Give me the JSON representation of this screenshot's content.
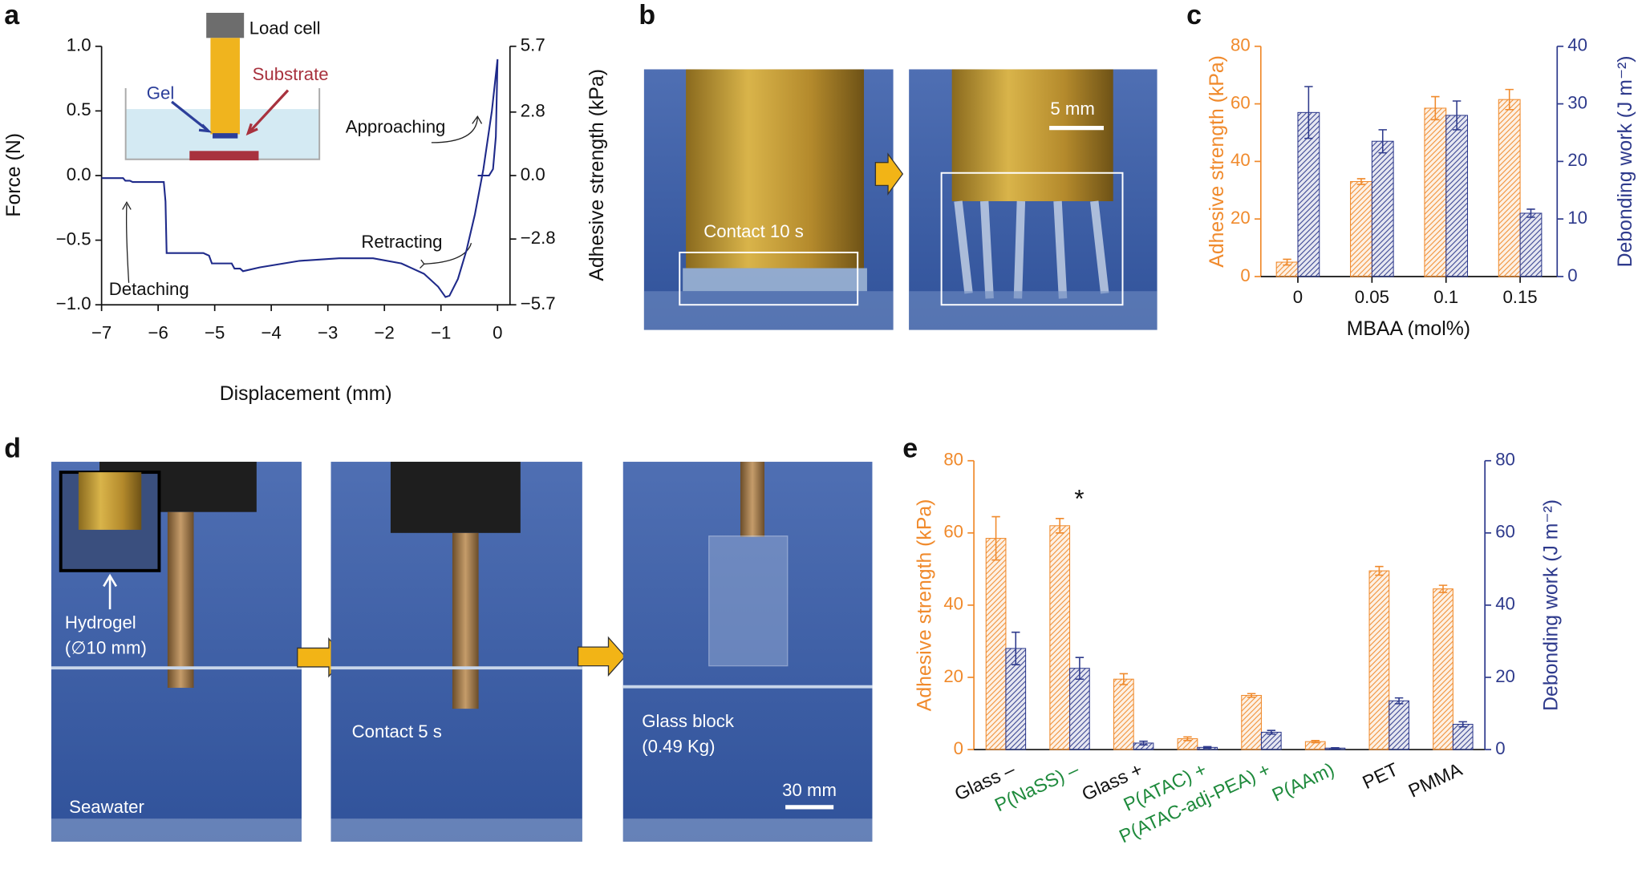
{
  "panels": [
    "a",
    "b",
    "c",
    "d",
    "e"
  ],
  "photos": {
    "b": {
      "labels": [
        "Contact 10 s",
        "5 mm"
      ]
    },
    "d": {
      "labels": [
        "Hydrogel",
        "(∅10 mm)",
        "Contact 5 s",
        "Glass block",
        "(0.49 Kg)",
        "Seawater",
        "30 mm"
      ]
    }
  },
  "chart_data": [
    {
      "type": "line",
      "xlabel": "Displacement (mm)",
      "ylabel": "Force (N)",
      "y2label": "Adhesive strength (kPa)",
      "x": [
        -7,
        -6.62,
        -6.58,
        -6.5,
        -6.45,
        -5.9,
        -5.87,
        -5.85,
        -5.2,
        -5.1,
        -5.05,
        -4.7,
        -4.65,
        -4.55,
        -4.5,
        -4.2,
        -3.5,
        -2.8,
        -2.2,
        -1.7,
        -1.3,
        -1.05,
        -0.92,
        -0.85,
        -0.7,
        -0.55,
        -0.4,
        -0.25,
        -0.1,
        0,
        null,
        -0.35,
        -0.15,
        -0.08,
        -0.03,
        0
      ],
      "series": [
        {
          "color": "#1f2a8a",
          "values": [
            -0.02,
            -0.02,
            -0.04,
            -0.04,
            -0.05,
            -0.05,
            -0.2,
            -0.6,
            -0.6,
            -0.62,
            -0.68,
            -0.68,
            -0.72,
            -0.72,
            -0.74,
            -0.71,
            -0.66,
            -0.64,
            -0.64,
            -0.68,
            -0.76,
            -0.86,
            -0.94,
            -0.93,
            -0.8,
            -0.58,
            -0.3,
            0.05,
            0.5,
            0.9,
            null,
            0,
            0,
            0.05,
            0.3,
            0.9
          ]
        }
      ],
      "xlim": [
        -7,
        0.22
      ],
      "xticks": [
        {
          "value": -7,
          "label": "−7"
        },
        {
          "value": -6,
          "label": "−6"
        },
        {
          "value": -5,
          "label": "−5"
        },
        {
          "value": -4,
          "label": "−4"
        },
        {
          "value": -3,
          "label": "−3"
        },
        {
          "value": -2,
          "label": "−2"
        },
        {
          "value": -1,
          "label": "−1"
        },
        0
      ],
      "ylim": [
        -1,
        1
      ],
      "yticks": [
        {
          "value": -1,
          "label": "−1.0"
        },
        {
          "value": -0.5,
          "label": "−0.5"
        },
        {
          "value": 0,
          "label": "0.0"
        },
        0.5,
        {
          "value": 1,
          "label": "1.0"
        }
      ],
      "y2lim": [
        -5.7,
        5.7
      ],
      "y2ticks": [
        {
          "value": -5.7,
          "label": "−5.7"
        },
        {
          "value": -2.8,
          "label": "−2.8"
        },
        {
          "value": 0,
          "label": "0.0"
        },
        2.8,
        5.7
      ],
      "inset_labels": [
        "Load cell",
        "Gel",
        "Substrate"
      ],
      "annotations": [
        "Approaching",
        "Retracting",
        "Detaching"
      ]
    },
    {
      "type": "bar",
      "colored_axes": true,
      "xlabel": "MBAA (mol%)",
      "ylabel": "Adhesive strength (kPa)",
      "y2label": "Debonding work (J m⁻²)",
      "categories": [
        "0",
        "0.05",
        "0.1",
        "0.15"
      ],
      "series": [
        {
          "color": "#f08a2c",
          "values": [
            5,
            33,
            58.5,
            61.5
          ],
          "errors": [
            1,
            1,
            4,
            3.5
          ]
        },
        {
          "color": "#2e3a8c",
          "axis": "y2",
          "values": [
            28.5,
            23.5,
            28,
            11
          ],
          "errors": [
            4.5,
            2,
            2.5,
            0.7
          ]
        }
      ],
      "ylim": [
        0,
        80
      ],
      "yticks": [
        0,
        20,
        40,
        60,
        80
      ],
      "y2lim": [
        0,
        40
      ],
      "y2ticks": [
        0,
        10,
        20,
        30,
        40
      ]
    },
    {
      "type": "bar",
      "colored_axes": true,
      "ylabel": "Adhesive strength (kPa)",
      "y2label": "Debonding work (J m⁻²)",
      "categories": [
        "Glass –",
        "P(NaSS) –",
        "Glass +",
        "P(ATAC) +",
        "P(ATAC-adj-PEA) +",
        "P(AAm)",
        "PET",
        "PMMA"
      ],
      "category_colors": [
        "#111111",
        "#1e8a3c",
        "#111111",
        "#1e8a3c",
        "#1e8a3c",
        "#1e8a3c",
        "#111111",
        "#111111"
      ],
      "series": [
        {
          "color": "#f08a2c",
          "values": [
            58.5,
            62,
            19.5,
            3,
            15,
            2.2,
            49.5,
            44.5
          ],
          "errors": [
            6,
            2,
            1.5,
            0.5,
            0.5,
            0.3,
            1.2,
            1
          ]
        },
        {
          "color": "#2e3a8c",
          "axis": "y2",
          "values": [
            28,
            22.5,
            1.8,
            0.6,
            4.8,
            0.4,
            13.5,
            7
          ],
          "errors": [
            4.5,
            3,
            0.5,
            0.2,
            0.5,
            0.1,
            0.8,
            0.7
          ]
        }
      ],
      "ylim": [
        0,
        80
      ],
      "yticks": [
        0,
        20,
        40,
        60,
        80
      ],
      "y2lim": [
        0,
        80
      ],
      "y2ticks": [
        0,
        20,
        40,
        60,
        80
      ],
      "annotations": [
        "*"
      ]
    }
  ]
}
